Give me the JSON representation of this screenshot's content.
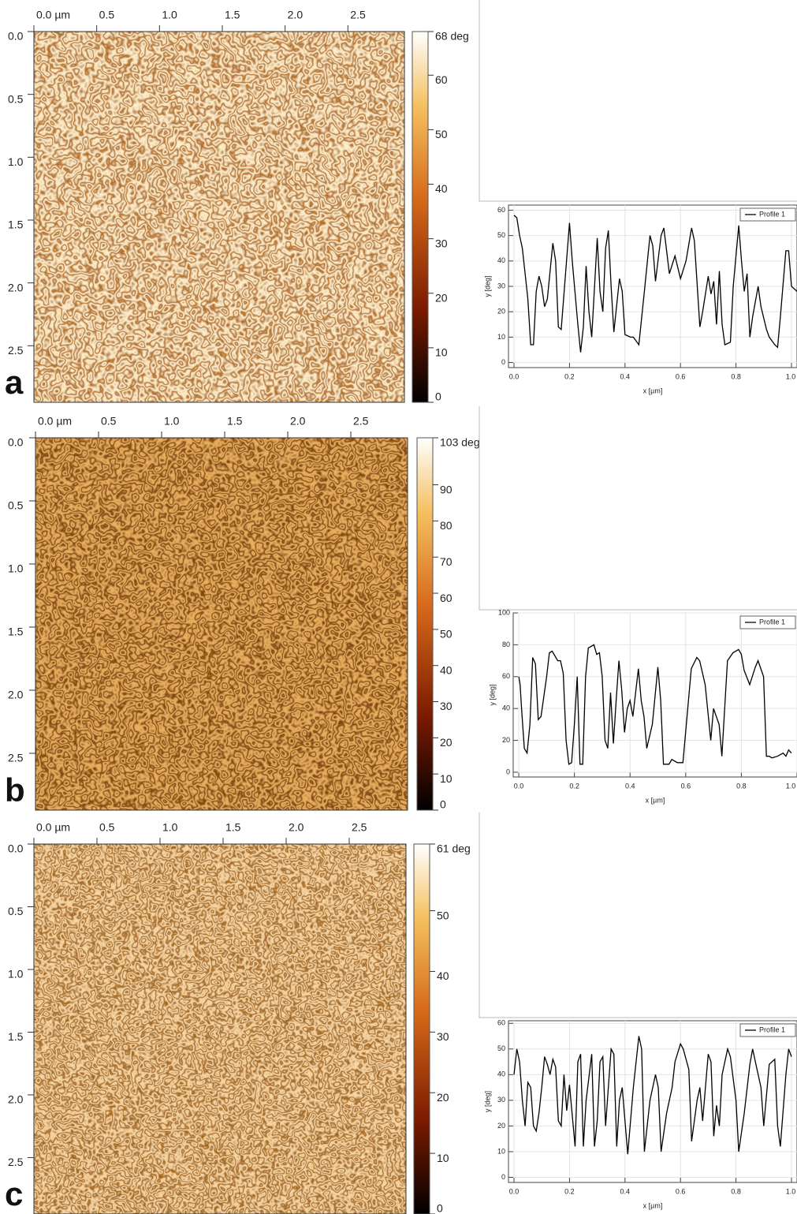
{
  "chart_data": [
    {
      "type": "heatmap",
      "label": "a",
      "xlim": [
        0,
        2.95
      ],
      "ylim": [
        0,
        2.95
      ],
      "xticks": [
        {
          "value": 0,
          "label": "0.0 µm"
        },
        0.5,
        {
          "value": 1,
          "label": "1.0"
        },
        1.5,
        {
          "value": 2,
          "label": "2.0"
        },
        2.5
      ],
      "yticks": [
        {
          "value": 0,
          "label": "0.0"
        },
        0.5,
        {
          "value": 1,
          "label": "1.0"
        },
        1.5,
        {
          "value": 2,
          "label": "2.0"
        },
        2.5
      ],
      "colorbar": {
        "lim": [
          0,
          68
        ],
        "ticks": [
          0,
          10,
          20,
          30,
          40,
          50,
          60,
          {
            "value": 68,
            "label": "68 deg"
          }
        ]
      }
    },
    {
      "type": "line",
      "xlim": [
        -0.02,
        1.02
      ],
      "ylim": [
        -2,
        62
      ],
      "grid": true,
      "xlabel": "x [µm]",
      "ylabel": "y [deg]",
      "xticks": [
        {
          "value": 0,
          "label": "0.0"
        },
        0.2,
        0.4,
        0.6,
        0.8,
        {
          "value": 1,
          "label": "1.0"
        }
      ],
      "yticks": [
        0,
        10,
        20,
        30,
        40,
        50,
        60
      ],
      "series": [
        {
          "name": "Profile 1",
          "color": "#000000",
          "x": [
            0,
            0.01,
            0.02,
            0.03,
            0.05,
            0.06,
            0.07,
            0.08,
            0.09,
            0.1,
            0.11,
            0.12,
            0.14,
            0.15,
            0.16,
            0.17,
            0.2,
            0.21,
            0.23,
            0.24,
            0.25,
            0.26,
            0.27,
            0.28,
            0.3,
            0.31,
            0.32,
            0.33,
            0.34,
            0.35,
            0.36,
            0.38,
            0.39,
            0.4,
            0.42,
            0.43,
            0.45,
            0.47,
            0.49,
            0.5,
            0.51,
            0.53,
            0.54,
            0.56,
            0.58,
            0.6,
            0.62,
            0.64,
            0.65,
            0.67,
            0.68,
            0.7,
            0.71,
            0.72,
            0.73,
            0.74,
            0.75,
            0.76,
            0.78,
            0.79,
            0.81,
            0.82,
            0.83,
            0.84,
            0.85,
            0.86,
            0.88,
            0.89,
            0.91,
            0.92,
            0.94,
            0.95,
            0.96,
            0.98,
            0.99,
            1.0,
            1.02
          ],
          "values": [
            58,
            57,
            50,
            45,
            25,
            7,
            7,
            28,
            34,
            30,
            22,
            25,
            47,
            40,
            14,
            13,
            55,
            40,
            15,
            4,
            14,
            38,
            20,
            10,
            49,
            28,
            20,
            45,
            52,
            30,
            12,
            33,
            28,
            11,
            10,
            10,
            7,
            28,
            50,
            46,
            32,
            50,
            53,
            35,
            42,
            33,
            40,
            53,
            48,
            14,
            20,
            34,
            27,
            32,
            15,
            36,
            15,
            7,
            8,
            30,
            54,
            40,
            28,
            35,
            10,
            18,
            30,
            22,
            13,
            10,
            7,
            6,
            18,
            44,
            44,
            30,
            28
          ]
        }
      ]
    },
    {
      "type": "heatmap",
      "label": "b",
      "xlim": [
        0,
        2.95
      ],
      "ylim": [
        0,
        2.95
      ],
      "xticks": [
        {
          "value": 0,
          "label": "0.0 µm"
        },
        0.5,
        {
          "value": 1,
          "label": "1.0"
        },
        1.5,
        {
          "value": 2,
          "label": "2.0"
        },
        2.5
      ],
      "yticks": [
        {
          "value": 0,
          "label": "0.0"
        },
        0.5,
        {
          "value": 1,
          "label": "1.0"
        },
        1.5,
        {
          "value": 2,
          "label": "2.0"
        },
        2.5
      ],
      "colorbar": {
        "lim": [
          0,
          103
        ],
        "ticks": [
          0,
          10,
          20,
          30,
          40,
          50,
          60,
          70,
          80,
          90,
          {
            "value": 103,
            "label": "103 deg"
          }
        ]
      }
    },
    {
      "type": "line",
      "xlim": [
        -0.02,
        1.0
      ],
      "ylim": [
        -3,
        100
      ],
      "grid": true,
      "xlabel": "x [µm]",
      "ylabel": "y [deg]",
      "xticks": [
        {
          "value": 0,
          "label": "0.0"
        },
        0.2,
        0.4,
        0.6,
        0.8,
        {
          "value": 1,
          "label": "1.0"
        }
      ],
      "yticks": [
        0,
        20,
        40,
        60,
        80,
        100
      ],
      "series": [
        {
          "name": "Profile 1",
          "color": "#000000",
          "x": [
            0,
            0.005,
            0.01,
            0.02,
            0.03,
            0.04,
            0.05,
            0.06,
            0.07,
            0.08,
            0.1,
            0.11,
            0.12,
            0.14,
            0.15,
            0.16,
            0.17,
            0.18,
            0.19,
            0.2,
            0.21,
            0.22,
            0.23,
            0.24,
            0.25,
            0.27,
            0.28,
            0.29,
            0.3,
            0.31,
            0.32,
            0.33,
            0.34,
            0.35,
            0.36,
            0.37,
            0.38,
            0.39,
            0.4,
            0.41,
            0.43,
            0.44,
            0.45,
            0.46,
            0.48,
            0.5,
            0.51,
            0.52,
            0.54,
            0.55,
            0.57,
            0.59,
            0.62,
            0.64,
            0.65,
            0.67,
            0.69,
            0.7,
            0.72,
            0.73,
            0.75,
            0.77,
            0.79,
            0.8,
            0.81,
            0.83,
            0.85,
            0.86,
            0.88,
            0.89,
            0.9,
            0.91,
            0.93,
            0.95,
            0.96,
            0.97,
            0.98
          ],
          "values": [
            60,
            55,
            40,
            15,
            12,
            30,
            72,
            68,
            33,
            35,
            60,
            75,
            76,
            70,
            70,
            62,
            20,
            5,
            6,
            30,
            60,
            5,
            5,
            60,
            78,
            80,
            74,
            75,
            60,
            20,
            15,
            50,
            18,
            45,
            70,
            52,
            25,
            40,
            45,
            35,
            65,
            45,
            35,
            15,
            30,
            66,
            45,
            5,
            5,
            8,
            6,
            6,
            65,
            72,
            70,
            55,
            20,
            40,
            30,
            10,
            70,
            75,
            77,
            74,
            64,
            55,
            66,
            70,
            60,
            10,
            10,
            9,
            10,
            12,
            10,
            14,
            12
          ]
        }
      ]
    },
    {
      "type": "heatmap",
      "label": "c",
      "xlim": [
        0,
        2.95
      ],
      "ylim": [
        0,
        2.95
      ],
      "xticks": [
        {
          "value": 0,
          "label": "0.0 µm"
        },
        0.5,
        {
          "value": 1,
          "label": "1.0"
        },
        1.5,
        {
          "value": 2,
          "label": "2.0"
        },
        2.5
      ],
      "yticks": [
        {
          "value": 0,
          "label": "0.0"
        },
        0.5,
        {
          "value": 1,
          "label": "1.0"
        },
        1.5,
        {
          "value": 2,
          "label": "2.0"
        },
        2.5
      ],
      "colorbar": {
        "lim": [
          0,
          61
        ],
        "ticks": [
          0,
          10,
          20,
          30,
          40,
          50,
          {
            "value": 61,
            "label": "61 deg"
          }
        ]
      }
    },
    {
      "type": "line",
      "xlim": [
        -0.02,
        1.02
      ],
      "ylim": [
        -2,
        61
      ],
      "grid": true,
      "xlabel": "x [µm]",
      "ylabel": "y [deg]",
      "xticks": [
        {
          "value": 0,
          "label": "0.0"
        },
        0.2,
        0.4,
        0.6,
        0.8,
        {
          "value": 1,
          "label": "1.0"
        }
      ],
      "yticks": [
        0,
        10,
        20,
        30,
        40,
        50,
        60
      ],
      "series": [
        {
          "name": "Profile 1",
          "color": "#000000",
          "x": [
            0,
            0.01,
            0.02,
            0.03,
            0.04,
            0.05,
            0.06,
            0.07,
            0.08,
            0.09,
            0.1,
            0.11,
            0.12,
            0.13,
            0.14,
            0.15,
            0.16,
            0.17,
            0.18,
            0.19,
            0.2,
            0.22,
            0.23,
            0.24,
            0.25,
            0.26,
            0.28,
            0.29,
            0.3,
            0.31,
            0.32,
            0.33,
            0.35,
            0.36,
            0.37,
            0.38,
            0.39,
            0.41,
            0.43,
            0.44,
            0.45,
            0.46,
            0.47,
            0.49,
            0.51,
            0.52,
            0.53,
            0.55,
            0.57,
            0.58,
            0.6,
            0.61,
            0.63,
            0.64,
            0.66,
            0.67,
            0.68,
            0.7,
            0.71,
            0.72,
            0.73,
            0.74,
            0.75,
            0.77,
            0.78,
            0.8,
            0.81,
            0.83,
            0.85,
            0.86,
            0.87,
            0.89,
            0.9,
            0.92,
            0.94,
            0.95,
            0.96,
            0.98,
            0.99,
            1.0
          ],
          "values": [
            40,
            50,
            45,
            30,
            20,
            37,
            35,
            20,
            18,
            25,
            35,
            47,
            44,
            40,
            46,
            43,
            22,
            20,
            40,
            26,
            36,
            12,
            45,
            48,
            12,
            30,
            48,
            12,
            22,
            45,
            47,
            20,
            50,
            48,
            12,
            30,
            35,
            9,
            35,
            45,
            55,
            50,
            10,
            30,
            40,
            35,
            10,
            25,
            35,
            45,
            52,
            50,
            42,
            14,
            30,
            35,
            22,
            48,
            45,
            16,
            28,
            20,
            40,
            50,
            47,
            30,
            10,
            25,
            44,
            50,
            45,
            35,
            20,
            44,
            46,
            20,
            12,
            40,
            50,
            47
          ]
        }
      ]
    }
  ]
}
